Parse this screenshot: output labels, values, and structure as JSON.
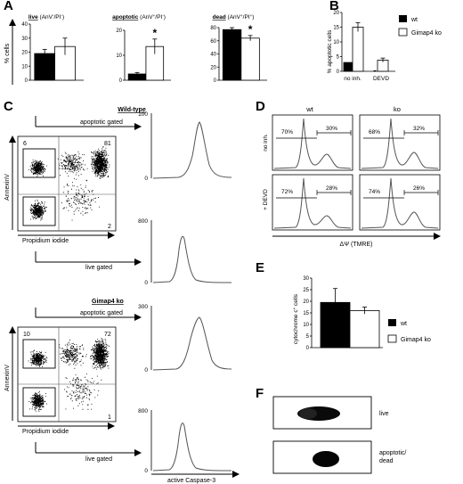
{
  "panels": {
    "A": {
      "letter": "A",
      "ylabel": "% cells",
      "charts": [
        {
          "title_main": "live",
          "title_sup": " (AnV",
          "title_rest": "-/PI-)",
          "title": "live (AnV-/PI-)",
          "ylim": [
            0,
            40
          ],
          "ticks": [
            "0",
            "10",
            "20",
            "30",
            "40"
          ],
          "values": [
            19,
            24
          ],
          "errors": [
            3,
            6
          ],
          "star": [
            false,
            false
          ]
        },
        {
          "title": "apoptotic (AnV+/PI-)",
          "ylim": [
            0,
            20
          ],
          "ticks": [
            "0",
            "10",
            "20"
          ],
          "values": [
            2.5,
            13.5
          ],
          "errors": [
            0.6,
            3
          ],
          "star": [
            false,
            true
          ]
        },
        {
          "title": "dead (AnV+/PI+)",
          "ylim": [
            0,
            80
          ],
          "ticks": [
            "0",
            "20",
            "40",
            "60",
            "80"
          ],
          "values": [
            77,
            64
          ],
          "errors": [
            3,
            4
          ],
          "star": [
            false,
            true
          ]
        }
      ]
    },
    "B": {
      "letter": "B",
      "ylabel": "% apoptotic cells",
      "ticks": [
        "0",
        "5",
        "10",
        "15",
        "20"
      ],
      "categories": [
        "no inh.",
        "DEVD"
      ],
      "legend": [
        "wt",
        "Gimap4 ko"
      ]
    },
    "C": {
      "letter": "C",
      "wildtype_label": "Wild-type",
      "ko_label": "Gimap4 ko",
      "apoptotic_gated": "apoptotic gated",
      "live_gated": "live gated",
      "y_axis": "AnnexinV",
      "x_axis": "Propidium iodide",
      "wt_quadrants": [
        "6",
        "81",
        "2"
      ],
      "ko_quadrants": [
        "10",
        "72",
        "1"
      ],
      "hist_ticks_wt_top": [
        "0",
        "100"
      ],
      "hist_ticks_wt_bottom": [
        "0",
        "800"
      ],
      "hist_ticks_ko_top": [
        "0",
        "300"
      ],
      "hist_ticks_ko_bottom": [
        "0",
        "800"
      ],
      "hist_xlabel": "active Caspase-3"
    },
    "D": {
      "letter": "D",
      "col_labels": [
        "wt",
        "ko"
      ],
      "row_labels": [
        "no inh.",
        "+ DEVD"
      ],
      "percents": [
        [
          "70%",
          "30%",
          "68%",
          "32%"
        ],
        [
          "72%",
          "28%",
          "74%",
          "26%"
        ]
      ],
      "xlabel": "ΔΨ (TMRE)"
    },
    "E": {
      "letter": "E",
      "ylabel": "cytochrome c+ cells",
      "ticks": [
        "0",
        "5",
        "10",
        "15",
        "20",
        "25",
        "30"
      ],
      "legend": [
        "wt",
        "Gimap4 ko"
      ]
    },
    "F": {
      "letter": "F",
      "labels": [
        "live",
        "apoptotic/\ndead"
      ],
      "label_live": "live",
      "label_apop1": "apoptotic/",
      "label_apop2": "dead"
    }
  },
  "chart_data": [
    {
      "type": "bar",
      "title": "live (AnV-/PI-)",
      "ylabel": "% cells",
      "categories": [
        "wt",
        "Gimap4 ko"
      ],
      "values": [
        19,
        24
      ],
      "errors": [
        3,
        6
      ],
      "ylim": [
        0,
        40
      ]
    },
    {
      "type": "bar",
      "title": "apoptotic (AnV+/PI-)",
      "ylabel": "% cells",
      "categories": [
        "wt",
        "Gimap4 ko"
      ],
      "values": [
        2.5,
        13.5
      ],
      "errors": [
        0.6,
        3
      ],
      "ylim": [
        0,
        20
      ]
    },
    {
      "type": "bar",
      "title": "dead (AnV+/PI+)",
      "ylabel": "% cells",
      "categories": [
        "wt",
        "Gimap4 ko"
      ],
      "values": [
        77,
        64
      ],
      "errors": [
        3,
        4
      ],
      "ylim": [
        0,
        80
      ]
    },
    {
      "type": "bar",
      "ylabel": "% apoptotic cells",
      "categories": [
        "no inh.",
        "DEVD"
      ],
      "series": [
        {
          "name": "wt",
          "values": [
            3,
            0.2
          ],
          "errors": [
            0,
            0
          ]
        },
        {
          "name": "Gimap4 ko",
          "values": [
            15,
            3.8
          ],
          "errors": [
            1.5,
            0.7
          ]
        }
      ],
      "ylim": [
        0,
        20
      ]
    },
    {
      "type": "bar",
      "ylabel": "cytochrome c+ cells",
      "series": [
        {
          "name": "wt",
          "values": [
            19.5
          ],
          "errors": [
            6
          ]
        },
        {
          "name": "Gimap4 ko",
          "values": [
            16
          ],
          "errors": [
            1.5
          ]
        }
      ],
      "ylim": [
        0,
        30
      ]
    }
  ]
}
